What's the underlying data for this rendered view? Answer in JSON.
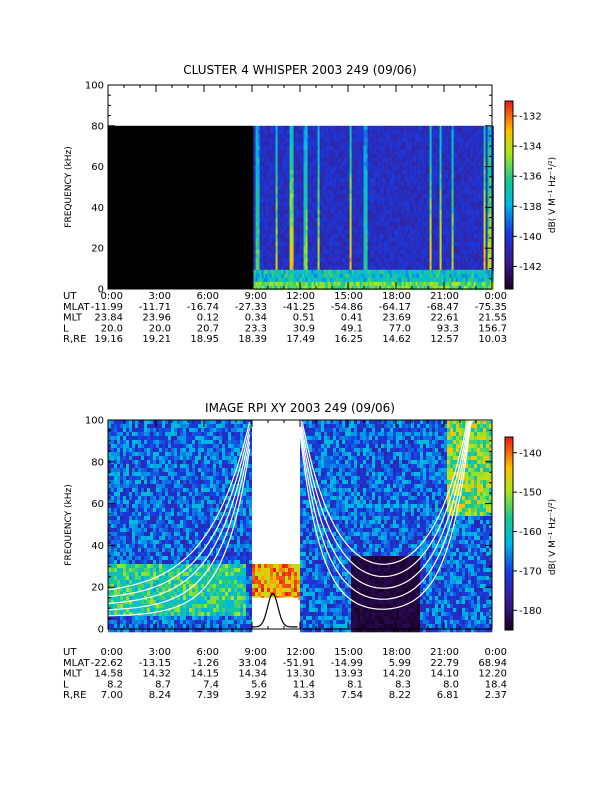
{
  "chart_data": [
    {
      "type": "heatmap",
      "title": "CLUSTER 4 WHISPER 2003 249 (09/06)",
      "ylabel": "FREQUENCY (kHz)",
      "ylim": [
        0,
        100
      ],
      "yticks": [
        "0",
        "20",
        "40",
        "60",
        "80",
        "100"
      ],
      "xlim_hours": [
        0,
        24
      ],
      "colorbar": {
        "label": "dB( V M⁻¹ Hz⁻¹/²)",
        "range": [
          -143.5,
          -131
        ],
        "ticks": [
          "-142",
          "-140",
          "-138",
          "-136",
          "-134",
          "-132"
        ]
      },
      "data_start_hour": 9.1,
      "data_top_khz": 80,
      "ephemeris": {
        "labels": [
          "UT",
          "MLAT",
          "MLT",
          "L",
          "R,RE"
        ],
        "rows": [
          [
            "0:00",
            "3:00",
            "6:00",
            "9:00",
            "12:00",
            "15:00",
            "18:00",
            "21:00",
            "0:00"
          ],
          [
            "-11.99",
            "-11.71",
            "-16.74",
            "-27.33",
            "-41.25",
            "-54.86",
            "-64.17",
            "-68.47",
            "-75.35"
          ],
          [
            "23.84",
            "23.96",
            "0.12",
            "0.34",
            "0.51",
            "0.41",
            "23.69",
            "22.61",
            "21.55"
          ],
          [
            "20.0",
            "20.0",
            "20.7",
            "23.3",
            "30.9",
            "49.1",
            "77.0",
            "93.3",
            "156.7"
          ],
          [
            "19.16",
            "19.21",
            "18.95",
            "18.39",
            "17.49",
            "16.25",
            "14.62",
            "12.57",
            "10.03"
          ]
        ]
      }
    },
    {
      "type": "heatmap",
      "title": "IMAGE RPI XY 2003 249 (09/06)",
      "ylabel": "FREQUENCY (kHz)",
      "ylim": [
        0,
        100
      ],
      "yticks": [
        "0",
        "20",
        "40",
        "60",
        "80",
        "100"
      ],
      "xlim_hours": [
        0,
        24
      ],
      "colorbar": {
        "label": "dB( V M⁻¹ Hz⁻¹/²)",
        "range": [
          -185,
          -136
        ],
        "ticks": [
          "-180",
          "-170",
          "-160",
          "-150",
          "-140"
        ]
      },
      "gap_hours": [
        9.0,
        11.9
      ],
      "ephemeris": {
        "labels": [
          "UT",
          "MLAT",
          "MLT",
          "L",
          "R,RE"
        ],
        "rows": [
          [
            "0:00",
            "3:00",
            "6:00",
            "9:00",
            "12:00",
            "15:00",
            "18:00",
            "21:00",
            "0:00"
          ],
          [
            "-22.62",
            "-13.15",
            "-1.26",
            "33.04",
            "-51.91",
            "-14.99",
            "5.99",
            "22.79",
            "68.94"
          ],
          [
            "14.58",
            "14.32",
            "14.15",
            "14.34",
            "13.30",
            "13.93",
            "14.20",
            "14.10",
            "12.20"
          ],
          [
            "8.2",
            "8.7",
            "7.4",
            "5.6",
            "11.4",
            "8.1",
            "8.3",
            "8.0",
            "18.4"
          ],
          [
            "7.00",
            "8.24",
            "7.39",
            "3.92",
            "4.33",
            "7.54",
            "8.22",
            "6.81",
            "2.37"
          ]
        ]
      }
    }
  ]
}
